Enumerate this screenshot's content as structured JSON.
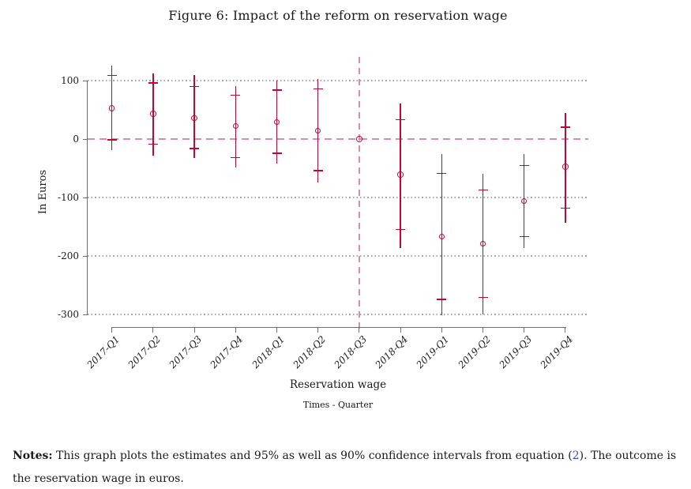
{
  "figure": {
    "title": "Figure 6: Impact of the reform on reservation wage"
  },
  "notes": {
    "label": "Notes:",
    "before_link": " This graph plots the estimates and 95% as well as 90% confidence intervals from equation (",
    "link": "2",
    "after_link": "). The outcome is the reservation wage in euros."
  },
  "colors": {
    "estimate": "#c10534",
    "reference_line": "#d98bb3",
    "gridline": "#a6a6a6",
    "axis": "#6e6e6e",
    "link": "#2d50c8",
    "text": "#1a1a1a"
  },
  "chart_data": {
    "type": "scatter",
    "subtype": "coefficient-plot with 95% and 90% confidence intervals",
    "title": "Figure 6: Impact of the reform on reservation wage",
    "xlabel": "Reservation wage",
    "xlabel_sub": "Times - Quarter",
    "ylabel": "In Euros",
    "y_ticks": [
      100,
      0,
      -100,
      -200,
      -300
    ],
    "ylim": [
      -310,
      140
    ],
    "grid": "horizontal dotted at y ticks, dashed reference line at 0",
    "reference_category": "2018-Q3",
    "legend_position": "none",
    "categories": [
      "2017-Q1",
      "2017-Q2",
      "2017-Q3",
      "2017-Q4",
      "2018-Q1",
      "2018-Q2",
      "2018-Q3",
      "2018-Q4",
      "2019-Q1",
      "2019-Q2",
      "2019-Q3",
      "2019-Q4"
    ],
    "series": [
      {
        "quarter": "2017-Q1",
        "estimate": 53,
        "ci95": [
          -19,
          126
        ],
        "ci90": [
          -1,
          109
        ]
      },
      {
        "quarter": "2017-Q2",
        "estimate": 43,
        "ci95": [
          -28,
          112
        ],
        "ci90": [
          -9,
          96
        ]
      },
      {
        "quarter": "2017-Q3",
        "estimate": 36,
        "ci95": [
          -32,
          109
        ],
        "ci90": [
          -16,
          90
        ]
      },
      {
        "quarter": "2017-Q4",
        "estimate": 22,
        "ci95": [
          -48,
          91
        ],
        "ci90": [
          -32,
          75
        ]
      },
      {
        "quarter": "2018-Q1",
        "estimate": 29,
        "ci95": [
          -42,
          100
        ],
        "ci90": [
          -24,
          84
        ]
      },
      {
        "quarter": "2018-Q2",
        "estimate": 14,
        "ci95": [
          -75,
          103
        ],
        "ci90": [
          -54,
          86
        ]
      },
      {
        "quarter": "2018-Q3",
        "estimate": 0,
        "ci95": null,
        "ci90": null
      },
      {
        "quarter": "2018-Q4",
        "estimate": -61,
        "ci95": [
          -186,
          61
        ],
        "ci90": [
          -155,
          33
        ]
      },
      {
        "quarter": "2019-Q1",
        "estimate": -167,
        "ci95": [
          -302,
          -26
        ],
        "ci90": [
          -274,
          -59
        ]
      },
      {
        "quarter": "2019-Q2",
        "estimate": -179,
        "ci95": [
          -300,
          -59
        ],
        "ci90": [
          -271,
          -87
        ]
      },
      {
        "quarter": "2019-Q3",
        "estimate": -106,
        "ci95": [
          -186,
          -25
        ],
        "ci90": [
          -167,
          -45
        ]
      },
      {
        "quarter": "2019-Q4",
        "estimate": -47,
        "ci95": [
          -143,
          44
        ],
        "ci90": [
          -118,
          20
        ]
      }
    ]
  }
}
